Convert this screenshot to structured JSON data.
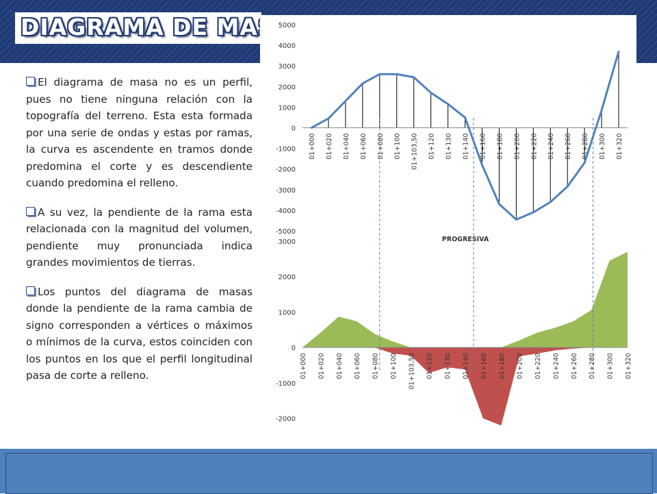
{
  "slide": {
    "title": "DIAGRAMA DE MASAS",
    "paragraphs": [
      "El diagrama de masa no es un perfil, pues no tiene ninguna relación con la topografía del terreno. Esta esta formada por una serie de ondas y estas por ramas, la curva es ascendente en tramos donde predomina el corte y es descendiente cuando predomina el relleno.",
      "A su vez, la pendiente de la rama esta relacionada con la magnitud del volumen, pendiente muy pronunciada indica grandes movimientos de tierras.",
      "Los puntos del diagrama de masas donde la pendiente de la rama cambia de signo corresponden a vértices o máximos o mínimos de la curva, estos coinciden con los puntos en los que el perfil longitudinal pasa de corte a relleno."
    ],
    "colors": {
      "band": "#1f3a74",
      "line": "#4f81bd",
      "fill_positive": "#9bbb59",
      "fill_negative": "#c0504d",
      "footer": "#4f81bd"
    }
  },
  "chart_data": [
    {
      "type": "line",
      "categories": [
        "01+000",
        "01+020",
        "01+040",
        "01+060",
        "01+080",
        "01+100",
        "01+103,50",
        "01+120",
        "01+130",
        "01+140",
        "01+160",
        "01+180",
        "01+200",
        "01+220",
        "01+240",
        "01+260",
        "01+280",
        "01+300",
        "01+320"
      ],
      "values": [
        0,
        450,
        1300,
        2150,
        2600,
        2600,
        2450,
        1700,
        1150,
        500,
        -1800,
        -3700,
        -4450,
        -4100,
        -3600,
        -2850,
        -1700,
        850,
        3700
      ],
      "ylim": [
        -5000,
        5000
      ],
      "yticks": [
        "5000",
        "4000",
        "3000",
        "2000",
        "1000",
        "0",
        "-1000",
        "-2000",
        "-3000",
        "-4000",
        "-5000"
      ],
      "xlabel": "PROGRESIVA",
      "drop_lines": true,
      "grid": false,
      "color": "#4f81bd"
    },
    {
      "type": "area",
      "categories": [
        "01+000",
        "01+020",
        "01+040",
        "01+060",
        "01+080",
        "01+100",
        "01+103,50",
        "01+120",
        "01+130",
        "01+140",
        "01+160",
        "01+180",
        "01+200",
        "01+220",
        "01+240",
        "01+260",
        "01+280",
        "01+300",
        "01+320"
      ],
      "series": [
        {
          "values": [
            0,
            420,
            870,
            740,
            380,
            170,
            0,
            0,
            0,
            0,
            0,
            0,
            200,
            420,
            560,
            740,
            1060,
            2450,
            2700
          ],
          "color": "#9bbb59"
        },
        {
          "values": [
            0,
            0,
            0,
            0,
            0,
            -170,
            -230,
            -720,
            -560,
            -620,
            -2000,
            -2200,
            -250,
            -170,
            -80,
            -30,
            0,
            0,
            0
          ],
          "color": "#c0504d"
        }
      ],
      "ylim": [
        -2800,
        3000
      ],
      "yticks": [
        "3000",
        "2000",
        "1000",
        "0",
        "-1000",
        "-2000"
      ],
      "grid": false
    }
  ]
}
